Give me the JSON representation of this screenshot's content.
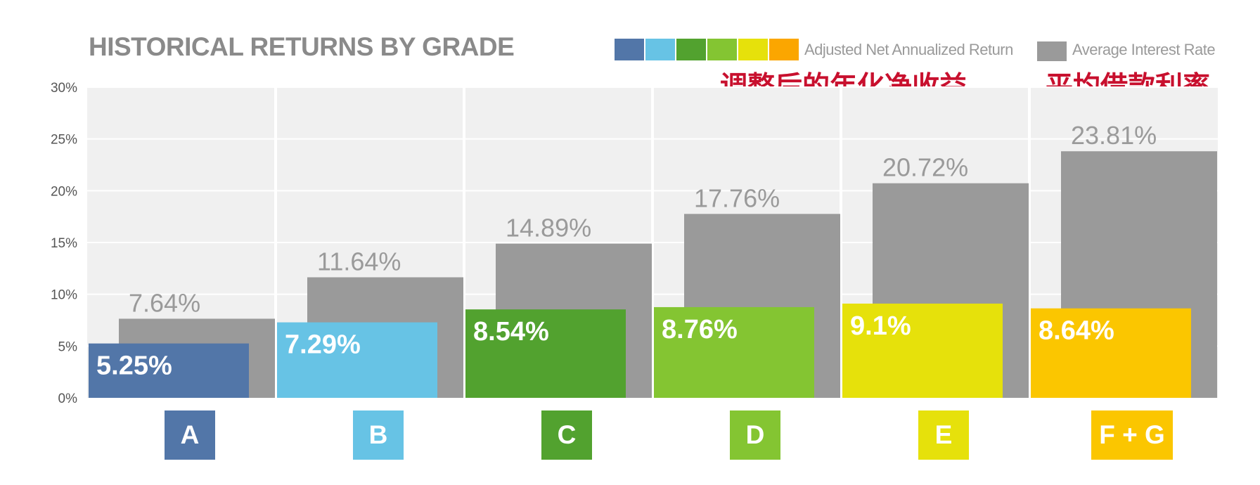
{
  "chart_data": {
    "type": "bar",
    "title": "HISTORICAL RETURNS BY GRADE",
    "categories": [
      "A",
      "B",
      "C",
      "D",
      "E",
      "F + G"
    ],
    "category_colors": [
      "#5276a8",
      "#67c3e5",
      "#52a22f",
      "#84c532",
      "#e6e10b",
      "#fbc600"
    ],
    "ylim": [
      0,
      30
    ],
    "yticks": [
      "0%",
      "5%",
      "10%",
      "15%",
      "20%",
      "25%",
      "30%"
    ],
    "grid": true,
    "series": [
      {
        "name": "Average Interest Rate",
        "color": "#9a9a9a",
        "values": [
          7.64,
          11.64,
          14.89,
          17.76,
          20.72,
          23.81
        ],
        "labels": [
          "7.64%",
          "11.64%",
          "14.89%",
          "17.76%",
          "20.72%",
          "23.81%"
        ]
      },
      {
        "name": "Adjusted Net Annualized Return",
        "values": [
          5.25,
          7.29,
          8.54,
          8.76,
          9.1,
          8.64
        ],
        "labels": [
          "5.25%",
          "7.29%",
          "8.54%",
          "8.76%",
          "9.1%",
          "8.64%"
        ]
      }
    ],
    "legend": {
      "placement": "top-right",
      "net_swatch_colors": [
        "#5276a8",
        "#67c3e5",
        "#52a22f",
        "#84c532",
        "#e6e10b",
        "#fba600"
      ],
      "net_label": "Adjusted Net Annualized Return",
      "avg_color": "#9a9a9a",
      "avg_label": "Average Interest Rate"
    },
    "annotations": {
      "net": "调整后的年化净收益",
      "avg": "平均借款利率",
      "color": "#c8102e"
    }
  }
}
